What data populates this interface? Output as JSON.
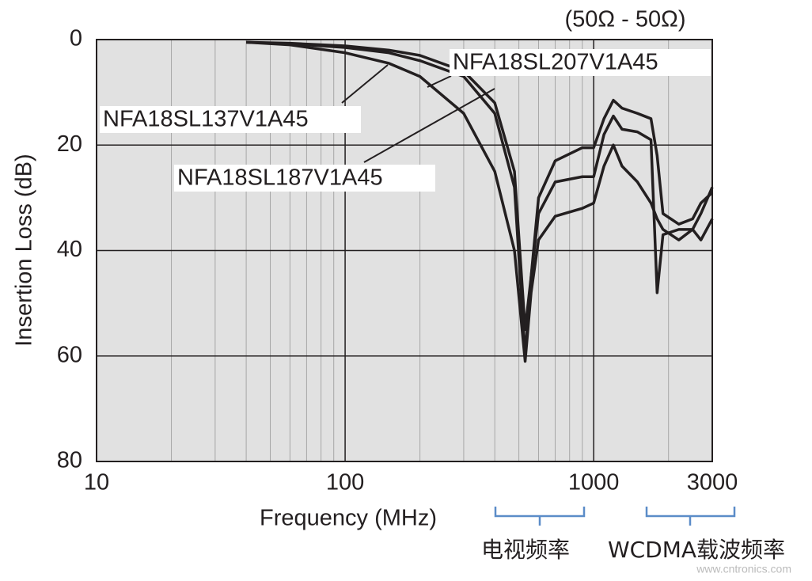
{
  "chart_data": {
    "type": "line",
    "annotation": "(50Ω - 50Ω)",
    "x_label": "Frequency (MHz)",
    "y_label": "Insertion Loss (dB)",
    "band_labels": [
      "电视频率",
      "WCDMA载波频率"
    ],
    "watermark": "www.cntronics.com",
    "x": [
      40,
      60,
      100,
      150,
      200,
      300,
      400,
      480,
      530,
      560,
      600,
      700,
      900,
      1000,
      1100,
      1200,
      1300,
      1500,
      1700,
      1800,
      1900,
      2200,
      2500,
      2700,
      3000
    ],
    "series": [
      {
        "name": "NFA18SL207V1A45",
        "color": "#231f20",
        "values": [
          0.5,
          0.7,
          1.2,
          2,
          3,
          6,
          12,
          25,
          55,
          45,
          30,
          23,
          20.5,
          20.5,
          15,
          11.5,
          13,
          14,
          15,
          22,
          33,
          35,
          34,
          31,
          29
        ]
      },
      {
        "name": "NFA18SL187V1A45",
        "color": "#231f20",
        "values": [
          0.5,
          0.8,
          1.5,
          2.5,
          4,
          7,
          14,
          28,
          60,
          45,
          33,
          27,
          26,
          26,
          18,
          14.5,
          17,
          17.5,
          19,
          48,
          37,
          36,
          36,
          33,
          28
        ]
      },
      {
        "name": "NFA18SL137V1A45",
        "color": "#231f20",
        "values": [
          0.5,
          1,
          2.5,
          4.5,
          7,
          14,
          25,
          40,
          61,
          48,
          38,
          33.5,
          32,
          31,
          24,
          20,
          24,
          27,
          31,
          34,
          36,
          38,
          36,
          38,
          34
        ]
      }
    ],
    "xlim": [
      10,
      3000
    ],
    "xticks": [
      10,
      100,
      1000,
      3000
    ],
    "x_log": true,
    "x_minor_ticks": [
      20,
      30,
      40,
      50,
      60,
      70,
      80,
      90,
      200,
      300,
      400,
      500,
      600,
      700,
      800,
      900,
      2000
    ],
    "ylim": [
      80,
      0
    ],
    "yticks": [
      0,
      20,
      40,
      60,
      80
    ],
    "grid": true,
    "plot_background": "#e1e1e1"
  }
}
